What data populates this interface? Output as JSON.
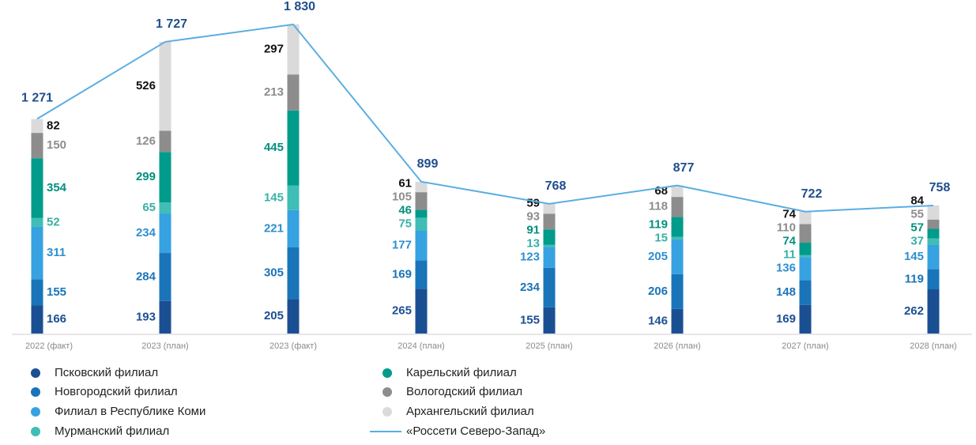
{
  "chart_data": {
    "type": "bar",
    "categories": [
      "2022 (факт)",
      "2023 (план)",
      "2023 (факт)",
      "2024 (план)",
      "2025 (план)",
      "2026 (план)",
      "2027 (план)",
      "2028 (план)"
    ],
    "series": [
      {
        "name": "Псковский филиал",
        "color": "#1b4f93",
        "label_color": "#1b4f93",
        "values": [
          166,
          193,
          205,
          265,
          155,
          146,
          169,
          262
        ]
      },
      {
        "name": "Новгородский филиал",
        "color": "#1a74b9",
        "label_color": "#1a74b9",
        "values": [
          155,
          284,
          305,
          169,
          234,
          206,
          148,
          119
        ]
      },
      {
        "name": "Филиал в Республике Коми",
        "color": "#37a2e1",
        "label_color": "#2d8fd0",
        "values": [
          311,
          234,
          221,
          177,
          123,
          205,
          136,
          145
        ]
      },
      {
        "name": "Мурманский филиал",
        "color": "#40bdb4",
        "label_color": "#35b2a8",
        "values": [
          52,
          65,
          145,
          75,
          13,
          15,
          11,
          37
        ]
      },
      {
        "name": "Карельский филиал",
        "color": "#009b8b",
        "label_color": "#00907f",
        "values": [
          354,
          299,
          445,
          46,
          91,
          119,
          74,
          57
        ]
      },
      {
        "name": "Вологодский филиал",
        "color": "#8d8d8d",
        "label_color": "#8d8d8d",
        "values": [
          150,
          126,
          213,
          105,
          93,
          118,
          110,
          55
        ]
      },
      {
        "name": "Архангельский филиал",
        "color": "#dadada",
        "label_color": "#111111",
        "values": [
          82,
          526,
          297,
          61,
          59,
          68,
          74,
          84
        ]
      },
      {
        "name": "«Россети Северо-Запад»",
        "type": "line",
        "color": "#5aaee2",
        "values": [
          1271,
          1727,
          1830,
          899,
          768,
          877,
          722,
          758
        ],
        "value_labels": [
          "1 271",
          "1 727",
          "1 830",
          "899",
          "768",
          "877",
          "722",
          "758"
        ]
      }
    ]
  }
}
